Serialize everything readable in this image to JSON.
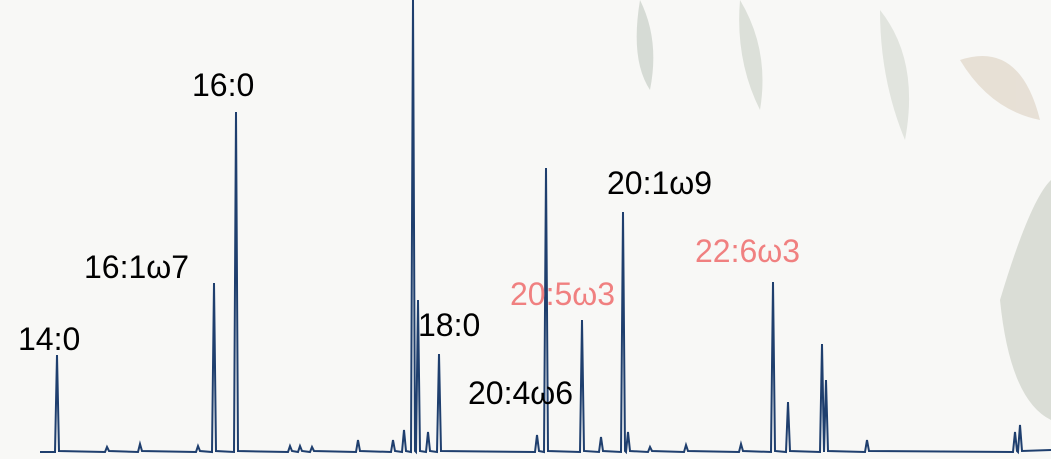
{
  "peaks": [
    {
      "label": "14:0",
      "color": "#000000"
    },
    {
      "label": "16:1ω7",
      "color": "#000000"
    },
    {
      "label": "16:0",
      "color": "#000000"
    },
    {
      "label": "18:0",
      "color": "#000000"
    },
    {
      "label": "20:4ω6",
      "color": "#000000"
    },
    {
      "label": "20:5ω3",
      "color": "#f08080"
    },
    {
      "label": "20:1ω9",
      "color": "#000000"
    },
    {
      "label": "22:6ω3",
      "color": "#f08080"
    }
  ]
}
